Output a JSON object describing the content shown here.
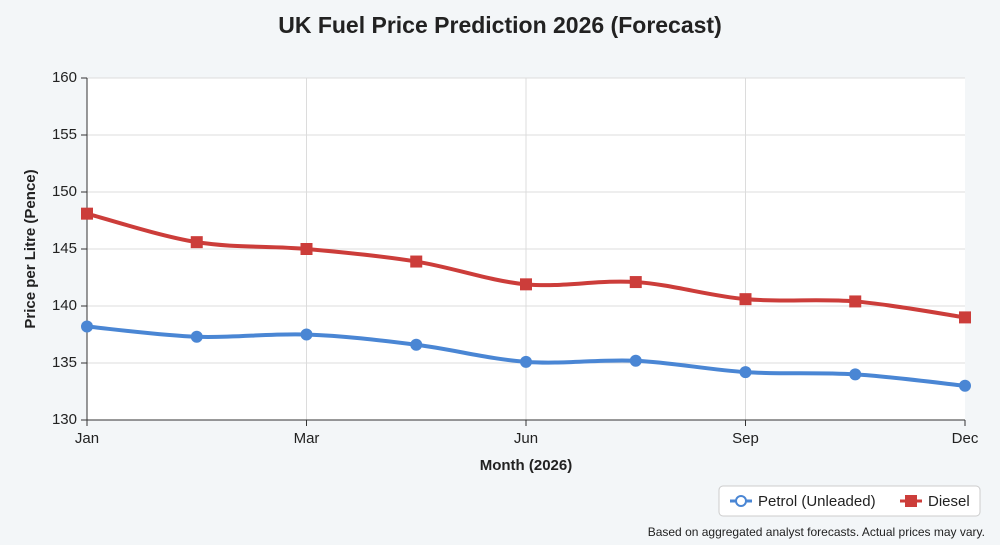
{
  "chart_data": {
    "type": "line",
    "title": "UK Fuel Price Prediction 2026 (Forecast)",
    "x_label": "Month (2026)",
    "y_label": "Price per Litre (Pence)",
    "categories": [
      "Jan",
      null,
      "Mar",
      null,
      "Jun",
      null,
      "Sep",
      null,
      "Dec"
    ],
    "series": [
      {
        "name": "Petrol (Unleaded)",
        "color": "#4a86d4",
        "marker": "circle",
        "values": [
          138.2,
          137.3,
          137.5,
          136.6,
          135.1,
          135.2,
          134.2,
          134.0,
          133.0
        ]
      },
      {
        "name": "Diesel",
        "color": "#cc3d3a",
        "marker": "square",
        "values": [
          148.1,
          145.6,
          145.0,
          143.9,
          141.9,
          142.1,
          140.6,
          140.4,
          139.0
        ]
      }
    ],
    "ylim": [
      130,
      160
    ],
    "yticks": [
      130,
      135,
      140,
      145,
      150,
      155,
      160
    ],
    "grid": true,
    "note": "Based on aggregated analyst forecasts. Actual prices may vary."
  }
}
